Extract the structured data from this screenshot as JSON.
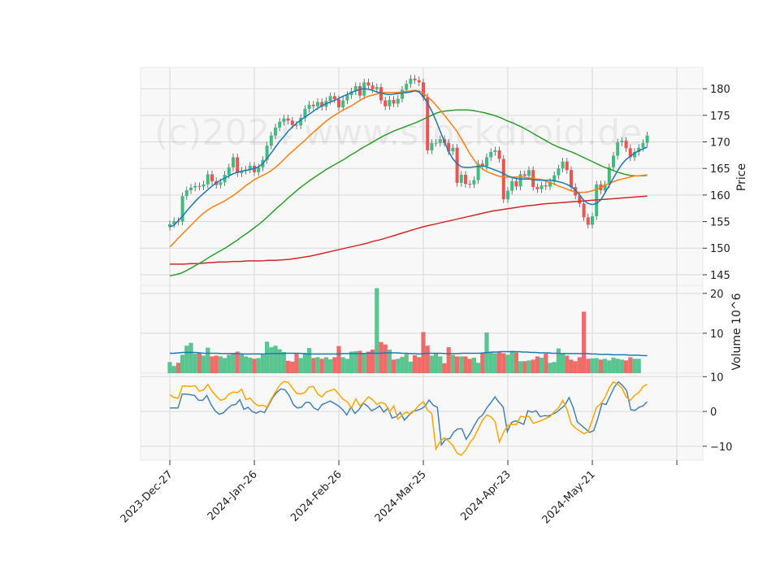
{
  "chart_data": {
    "type": "candlestick",
    "watermark": "(c)2024 www.stockdroid.de",
    "x_tick_labels": [
      "2023-Dec-27",
      "2024-Jan-26",
      "2024-Feb-26",
      "2024-Mar-25",
      "2024-Apr-23",
      "2024-May-21"
    ],
    "x_tick_positions": [
      0,
      20,
      40,
      60,
      80,
      100
    ],
    "colors": {
      "up": "#26a69a",
      "up_fill": "#3dbd80",
      "down": "#ef5350",
      "sma_fast": "#1f77b4",
      "sma_mid": "#ff7f0e",
      "sma_slow": "#2ca02c",
      "sma_long": "#d62728",
      "osc_a": "#4682b4",
      "osc_b": "#ffa500",
      "grid": "#d9d9d9",
      "panel_bg": "#f8f8f8"
    },
    "price_panel": {
      "ylabel": "Price",
      "ylim": [
        143,
        184
      ],
      "yticks": [
        145,
        150,
        155,
        160,
        165,
        170,
        175,
        180
      ],
      "close": [
        154.5,
        155.1,
        155.0,
        159.8,
        160.9,
        161.4,
        161.7,
        161.6,
        162.0,
        163.9,
        162.6,
        161.9,
        162.4,
        163.8,
        165.2,
        167.1,
        164.1,
        164.6,
        164.8,
        165.5,
        164.3,
        165.2,
        166.6,
        169.3,
        171.2,
        172.7,
        173.8,
        174.4,
        174.0,
        173.2,
        173.1,
        174.5,
        176.2,
        177.0,
        176.7,
        177.5,
        176.6,
        177.7,
        178.6,
        178.0,
        176.5,
        177.8,
        178.8,
        179.5,
        180.5,
        178.7,
        181.2,
        180.6,
        179.9,
        180.3,
        177.8,
        176.7,
        177.9,
        177.2,
        178.1,
        179.8,
        180.9,
        181.9,
        181.6,
        181.2,
        178.4,
        168.4,
        169.8,
        169.8,
        170.5,
        169.8,
        168.2,
        168.9,
        162.3,
        163.8,
        162.1,
        162.0,
        162.8,
        165.9,
        165.4,
        167.1,
        168.1,
        168.4,
        166.8,
        159.2,
        160.8,
        162.6,
        161.6,
        163.9,
        163.6,
        164.7,
        161.5,
        161.1,
        161.8,
        161.6,
        162.5,
        163.7,
        165.0,
        166.3,
        164.7,
        161.5,
        159.9,
        158.4,
        155.8,
        154.4,
        156.0,
        162.0,
        160.9,
        162.0,
        165.2,
        167.4,
        169.9,
        170.2,
        168.8,
        167.1,
        168.1,
        168.9,
        169.8,
        171.2
      ],
      "sma_fast": [
        154.0,
        154.3,
        155.2,
        156.0,
        157.0,
        157.9,
        158.8,
        159.6,
        160.3,
        161.0,
        161.7,
        162.3,
        162.8,
        163.2,
        163.6,
        164.0,
        164.3,
        164.5,
        164.6,
        164.8,
        165.0,
        165.3,
        165.9,
        166.9,
        167.9,
        169.0,
        170.1,
        171.0,
        172.0,
        172.8,
        173.5,
        174.1,
        174.7,
        175.2,
        175.8,
        176.3,
        176.8,
        177.2,
        177.5,
        177.8,
        178.2,
        178.6,
        178.9,
        179.3,
        179.6,
        179.9,
        180.0,
        179.9,
        179.7,
        179.4,
        179.2,
        179.0,
        178.9,
        179.0,
        179.1,
        179.2,
        179.3,
        179.4,
        179.6,
        179.4,
        178.5,
        177.3,
        175.8,
        174.0,
        172.0,
        170.0,
        168.2,
        166.8,
        165.9,
        165.3,
        165.2,
        165.2,
        165.3,
        165.4,
        165.5,
        165.3,
        165.0,
        164.7,
        164.4,
        164.0,
        163.6,
        163.3,
        163.1,
        163.0,
        163.0,
        163.0,
        162.9,
        162.8,
        162.8,
        162.8,
        162.8,
        162.7,
        162.5,
        162.3,
        162.0,
        161.6,
        160.9,
        160.0,
        159.0,
        158.4,
        158.2,
        158.4,
        159.1,
        160.4,
        161.8,
        163.2,
        164.6,
        165.8,
        166.7,
        167.3,
        167.9,
        168.3,
        168.7,
        169.0
      ],
      "sma_mid": [
        150.2,
        151.0,
        151.9,
        152.7,
        153.5,
        154.3,
        155.1,
        155.9,
        156.6,
        157.2,
        157.7,
        158.1,
        158.5,
        158.9,
        159.4,
        159.9,
        160.5,
        161.1,
        161.8,
        162.3,
        162.9,
        163.3,
        163.7,
        164.1,
        164.6,
        165.2,
        165.9,
        166.7,
        167.5,
        168.2,
        168.9,
        169.6,
        170.3,
        171.1,
        171.8,
        172.5,
        173.2,
        173.9,
        174.5,
        175.0,
        175.5,
        176.0,
        176.4,
        176.8,
        177.3,
        177.8,
        178.3,
        178.6,
        178.8,
        179.0,
        179.2,
        179.3,
        179.3,
        179.3,
        179.3,
        179.4,
        179.5,
        179.6,
        179.7,
        179.6,
        179.2,
        178.5,
        177.8,
        176.9,
        176.0,
        175.0,
        174.0,
        173.0,
        171.9,
        170.6,
        169.2,
        167.8,
        166.6,
        165.6,
        164.9,
        164.4,
        164.1,
        163.8,
        163.5,
        163.4,
        163.4,
        163.4,
        163.4,
        163.4,
        163.3,
        163.2,
        163.2,
        163.0,
        162.9,
        162.6,
        162.3,
        162.1,
        161.7,
        161.4,
        161.1,
        160.8,
        160.6,
        160.5,
        160.5,
        160.6,
        160.8,
        161.1,
        161.4,
        161.8,
        162.2,
        162.5,
        162.8,
        163.0,
        163.2,
        163.4,
        163.6,
        163.6,
        163.7,
        163.8
      ],
      "sma_slow": [
        144.8,
        145.0,
        145.3,
        145.8,
        146.4,
        147.0,
        147.6,
        148.3,
        148.9,
        149.5,
        150.1,
        150.8,
        151.5,
        152.3,
        153.0,
        153.8,
        154.6,
        155.5,
        156.5,
        157.5,
        158.4,
        159.4,
        160.3,
        161.2,
        162.0,
        162.8,
        163.5,
        164.2,
        164.9,
        165.5,
        166.1,
        166.7,
        167.4,
        168.0,
        168.7,
        169.3,
        169.9,
        170.5,
        171.1,
        171.6,
        172.1,
        172.5,
        172.9,
        173.3,
        173.7,
        174.2,
        174.7,
        175.2,
        175.6,
        175.8,
        175.9,
        176.0,
        176.0,
        176.0,
        175.9,
        175.7,
        175.5,
        175.2,
        174.9,
        174.5,
        174.0,
        173.6,
        173.1,
        172.6,
        172.0,
        171.4,
        170.8,
        170.2,
        169.6,
        169.1,
        168.7,
        168.3,
        167.9,
        167.4,
        166.9,
        166.4,
        165.9,
        165.4,
        165.0,
        164.6,
        164.2,
        163.9,
        163.7,
        163.6,
        163.6,
        163.7
      ],
      "sma_long": [
        147.0,
        147.0,
        147.0,
        147.1,
        147.1,
        147.2,
        147.3,
        147.4,
        147.4,
        147.5,
        147.5,
        147.6,
        147.6,
        147.6,
        147.7,
        147.7,
        147.8,
        147.9,
        148.1,
        148.3,
        148.5,
        148.8,
        149.1,
        149.4,
        149.7,
        150.0,
        150.3,
        150.6,
        150.9,
        151.3,
        151.6,
        152.0,
        152.4,
        152.8,
        153.2,
        153.6,
        154.0,
        154.3,
        154.6,
        154.9,
        155.2,
        155.5,
        155.8,
        156.1,
        156.4,
        156.7,
        157.0,
        157.2,
        157.4,
        157.6,
        157.8,
        158.0,
        158.1,
        158.3,
        158.4,
        158.5,
        158.6,
        158.7,
        158.8,
        158.9,
        159.0,
        159.1,
        159.2,
        159.3,
        159.4,
        159.5,
        159.6,
        159.7,
        159.8
      ]
    },
    "volume_panel": {
      "ylabel": "Volume  10^6",
      "ylim": [
        0,
        22
      ],
      "yticks": [
        10,
        20
      ],
      "values": [
        2.8,
        1.8,
        2.6,
        4.6,
        6.9,
        7.6,
        4.9,
        5.2,
        4.4,
        6.4,
        4.2,
        4.4,
        4.2,
        3.8,
        4.6,
        5.1,
        5.4,
        4.7,
        4.2,
        3.9,
        3.6,
        3.8,
        4.8,
        7.9,
        6.5,
        6.9,
        6.0,
        5.3,
        3.1,
        2.9,
        4.9,
        3.8,
        5.1,
        6.3,
        3.8,
        4.0,
        3.6,
        4.0,
        3.5,
        4.0,
        6.8,
        4.0,
        3.6,
        5.4,
        5.5,
        5.6,
        4.8,
        5.4,
        5.9,
        21.3,
        7.8,
        7.2,
        5.9,
        3.4,
        3.6,
        4.1,
        4.8,
        2.9,
        4.5,
        4.0,
        10.3,
        6.9,
        4.4,
        4.9,
        4.2,
        2.5,
        6.5,
        4.6,
        4.2,
        4.2,
        4.2,
        3.6,
        3.9,
        2.6,
        5.2,
        10.2,
        5.3,
        5.0,
        5.2,
        5.0,
        4.6,
        5.6,
        5.2,
        3.0,
        3.0,
        3.2,
        3.4,
        4.2,
        3.9,
        4.9,
        2.6,
        2.8,
        6.2,
        4.8,
        4.4,
        3.4,
        3.0,
        4.0,
        15.4,
        3.6,
        3.7,
        3.8,
        3.4,
        3.6,
        3.2,
        3.9,
        3.6,
        3.4,
        3.2,
        4.0,
        3.6,
        3.6
      ],
      "avg": [
        5.0,
        5.0,
        5.1,
        5.2,
        5.2,
        5.2,
        5.2,
        5.1,
        5.0,
        5.0,
        5.0,
        5.0,
        4.9,
        4.9,
        4.9,
        4.9,
        4.9,
        4.8,
        4.8,
        4.8,
        4.8,
        4.8,
        4.8,
        4.9,
        4.9,
        4.9,
        4.9,
        5.0,
        5.0,
        5.0,
        5.0,
        4.9,
        4.8,
        4.8,
        4.8,
        4.8,
        4.8,
        4.8,
        4.8,
        4.8,
        4.9,
        4.9,
        4.9,
        4.9,
        4.9,
        4.9,
        5.0,
        5.0,
        5.0,
        5.0,
        5.1,
        5.1,
        5.1,
        5.1,
        5.0,
        5.0,
        4.9,
        4.9,
        4.8,
        4.9,
        5.0,
        5.0,
        5.0,
        5.0,
        4.9,
        4.9,
        4.9,
        4.9,
        5.0,
        5.0,
        5.0,
        5.0,
        5.0,
        5.1,
        5.2,
        5.3,
        5.3,
        5.4,
        5.4,
        5.4,
        5.4,
        5.4,
        5.3,
        5.3,
        5.2,
        5.2,
        5.1,
        5.1,
        5.1,
        5.0,
        5.0,
        4.9,
        4.9,
        4.9,
        4.9,
        4.9,
        4.9,
        4.9,
        4.8,
        4.8,
        4.7,
        4.7,
        4.7,
        4.6,
        4.6,
        4.6,
        4.6,
        4.5,
        4.5,
        4.5,
        4.4,
        4.4
      ]
    },
    "oscillator_panel": {
      "ylim": [
        -14,
        11
      ],
      "yticks": [
        -10,
        0,
        10
      ],
      "ytick_labels": [
        "−10",
        "0",
        "10"
      ],
      "line_a": [
        1.0,
        1.0,
        1.0,
        5.0,
        5.0,
        4.8,
        4.6,
        3.2,
        3.2,
        4.6,
        2.0,
        0.2,
        -0.8,
        -0.4,
        0.8,
        1.8,
        2.0,
        3.4,
        0.6,
        1.2,
        0.0,
        -0.5,
        0.1,
        -0.3,
        1.8,
        4.0,
        5.5,
        6.5,
        6.2,
        4.6,
        2.0,
        1.0,
        1.2,
        2.6,
        2.6,
        1.0,
        0.4,
        2.0,
        2.5,
        3.0,
        2.3,
        1.6,
        0.5,
        -1.0,
        1.2,
        -0.6,
        0.6,
        2.4,
        1.6,
        0.2,
        0.8,
        1.6,
        -0.2,
        1.0,
        -1.9,
        -1.5,
        -0.3,
        -2.5,
        -1.2,
        0.0,
        0.3,
        0.7,
        1.5,
        3.3,
        1.8,
        1.2,
        -9.6,
        -8.0,
        -7.8,
        -5.9,
        -5.0,
        -5.0,
        -8.0,
        -6.2,
        -4.0,
        -2.0,
        -1.0,
        1.0,
        2.5,
        4.2,
        2.6,
        1.3,
        -5.8,
        -3.2,
        -2.7,
        -3.2,
        -3.7,
        0.2,
        -0.2,
        0.2,
        -1.5,
        -1.2,
        -1.3,
        -0.8,
        -0.2,
        0.8,
        1.8,
        4.0,
        1.2,
        -3.0,
        -4.0,
        -5.0,
        -6.0,
        -5.5,
        -2.0,
        2.3,
        2.0,
        4.5,
        7.0,
        8.5,
        7.5,
        6.0,
        0.5,
        0.3,
        1.2,
        1.6,
        2.8
      ],
      "line_b": [
        4.8,
        4.0,
        3.8,
        7.3,
        7.3,
        7.2,
        7.4,
        5.8,
        6.2,
        7.8,
        5.8,
        4.4,
        3.2,
        3.6,
        5.0,
        5.6,
        5.4,
        6.4,
        3.4,
        3.8,
        2.4,
        1.6,
        1.8,
        1.2,
        3.6,
        5.6,
        7.6,
        8.6,
        8.4,
        6.8,
        5.2,
        5.0,
        5.5,
        7.0,
        7.2,
        5.0,
        4.2,
        5.6,
        6.0,
        6.4,
        5.0,
        3.5,
        2.8,
        1.0,
        3.6,
        1.6,
        2.8,
        4.2,
        3.4,
        2.0,
        2.6,
        2.2,
        -0.2,
        1.6,
        -2.2,
        -1.0,
        -0.2,
        -0.8,
        0.4,
        1.8,
        2.8,
        0.4,
        -0.6,
        -10.8,
        -8.6,
        -7.6,
        -8.5,
        -9.8,
        -12.0,
        -12.6,
        -11.2,
        -9.0,
        -7.5,
        -5.0,
        -2.6,
        -1.0,
        -1.5,
        -3.0,
        -8.8,
        -6.0,
        -4.0,
        -3.7,
        -3.8,
        -1.4,
        -1.6,
        -1.4,
        -3.4,
        -3.0,
        -2.6,
        -2.0,
        -1.5,
        0.0,
        1.0,
        3.2,
        0.6,
        -3.5,
        -4.8,
        -5.6,
        -6.4,
        -5.8,
        -2.4,
        1.2,
        2.2,
        4.0,
        6.8,
        8.5,
        7.8,
        6.8,
        4.2,
        3.2,
        4.6,
        5.4,
        7.2,
        7.8
      ]
    }
  }
}
